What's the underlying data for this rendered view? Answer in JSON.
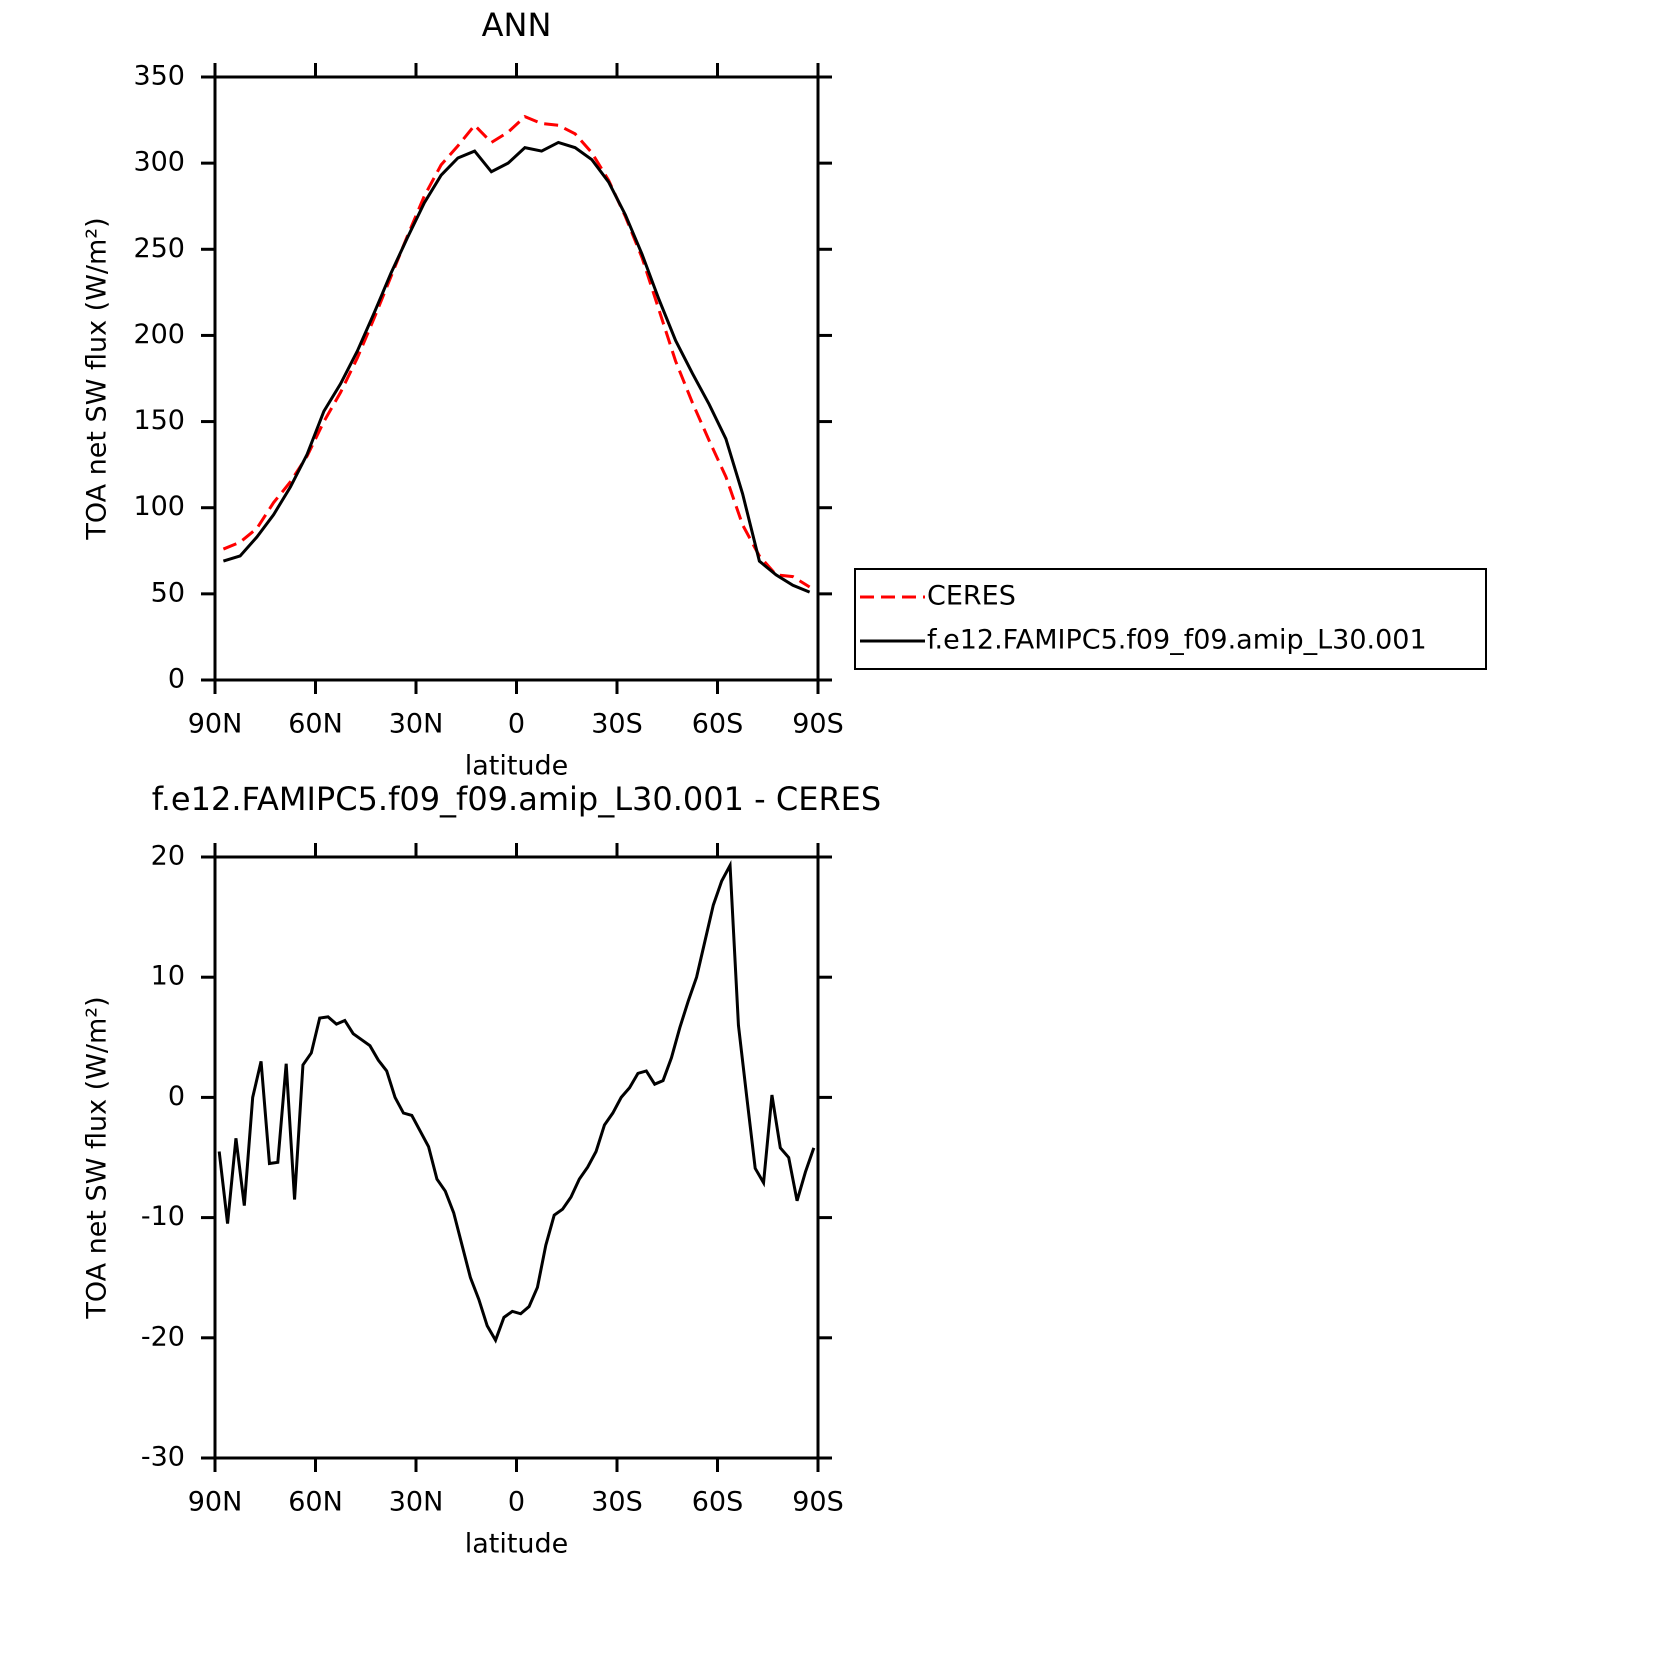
{
  "chart_data": [
    {
      "type": "line",
      "title": "ANN",
      "x": [
        87.5,
        82.5,
        77.5,
        72.5,
        67.5,
        62.5,
        57.5,
        52.5,
        47.5,
        42.5,
        37.5,
        32.5,
        27.5,
        22.5,
        17.5,
        12.5,
        7.5,
        2.5,
        -2.5,
        -7.5,
        -12.5,
        -17.5,
        -22.5,
        -27.5,
        -32.5,
        -37.5,
        -42.5,
        -47.5,
        -52.5,
        -57.5,
        -62.5,
        -67.5,
        -72.5,
        -77.5,
        -82.5,
        -87.5
      ],
      "series": [
        {
          "name": "CERES",
          "color": "#ff0000",
          "linestyle": "dashed",
          "values": [
            76,
            80,
            88,
            103,
            115,
            130,
            150,
            167,
            187,
            210,
            234,
            258,
            281,
            299,
            310,
            322,
            312,
            318,
            327,
            323,
            322,
            317,
            306,
            290,
            269,
            245,
            215,
            185,
            161,
            139,
            118,
            90,
            72,
            61,
            60,
            54
          ]
        },
        {
          "name": "f.e12.FAMIPC5.f09_f09.amip_L30.001",
          "color": "#000000",
          "linestyle": "solid",
          "values": [
            69,
            72,
            83,
            96,
            112,
            131,
            156,
            172,
            191,
            213,
            236,
            257,
            277,
            293,
            303,
            307,
            295,
            300,
            309,
            307,
            312,
            309,
            302,
            289,
            270,
            247,
            221,
            197,
            178,
            160,
            140,
            108,
            69,
            61,
            55,
            51
          ]
        }
      ],
      "xlim": [
        90,
        -90
      ],
      "xticks": [
        {
          "value": 90,
          "label": "90N"
        },
        {
          "value": 60,
          "label": "60N"
        },
        {
          "value": 30,
          "label": "30N"
        },
        0,
        {
          "value": -30,
          "label": "30S"
        },
        {
          "value": -60,
          "label": "60S"
        },
        {
          "value": -90,
          "label": "90S"
        }
      ],
      "ylim": [
        0,
        350
      ],
      "yticks": [
        0,
        50,
        100,
        150,
        200,
        250,
        300,
        350
      ],
      "xlabel": "latitude",
      "ylabel": "TOA net SW flux (W/m²)",
      "legend": "outside-right"
    },
    {
      "type": "line",
      "title": "f.e12.FAMIPC5.f09_f09.amip_L30.001 - CERES",
      "x": [
        88.75,
        86.25,
        83.75,
        81.25,
        78.75,
        76.25,
        73.75,
        71.25,
        68.75,
        66.25,
        63.75,
        61.25,
        58.75,
        56.25,
        53.75,
        51.25,
        48.75,
        46.25,
        43.75,
        41.25,
        38.75,
        36.25,
        33.75,
        31.25,
        28.75,
        26.25,
        23.75,
        21.25,
        18.75,
        16.25,
        13.75,
        11.25,
        8.75,
        6.25,
        3.75,
        1.25,
        -1.25,
        -3.75,
        -6.25,
        -8.75,
        -11.25,
        -13.75,
        -16.25,
        -18.75,
        -21.25,
        -23.75,
        -26.25,
        -28.75,
        -31.25,
        -33.75,
        -36.25,
        -38.75,
        -41.25,
        -43.75,
        -46.25,
        -48.75,
        -51.25,
        -53.75,
        -56.25,
        -58.75,
        -61.25,
        -63.75,
        -66.25,
        -68.75,
        -71.25,
        -73.75,
        -76.25,
        -78.75,
        -81.25,
        -83.75,
        -86.25,
        -88.75
      ],
      "values": [
        -4.5,
        -10.5,
        -3.4,
        -9,
        0,
        3,
        -5.5,
        -5.4,
        2.8,
        -8.5,
        2.7,
        3.7,
        6.6,
        6.7,
        6.1,
        6.4,
        5.3,
        4.8,
        4.3,
        3.1,
        2.2,
        0,
        -1.3,
        -1.5,
        -2.8,
        -4.1,
        -6.8,
        -7.8,
        -9.6,
        -12.3,
        -15,
        -16.8,
        -19,
        -20.2,
        -18.3,
        -17.8,
        -18,
        -17.4,
        -15.8,
        -12.3,
        -9.8,
        -9.3,
        -8.3,
        -6.8,
        -5.8,
        -4.5,
        -2.3,
        -1.3,
        0,
        0.8,
        2,
        2.2,
        1.1,
        1.4,
        3.3,
        5.8,
        8,
        10,
        13,
        16,
        18,
        19.3,
        6,
        0,
        -5.9,
        -7.1,
        0.2,
        -4.2,
        -5,
        -8.6,
        -6.2,
        -4.2
      ],
      "color": "#000000",
      "xlim": [
        90,
        -90
      ],
      "xticks": [
        {
          "value": 90,
          "label": "90N"
        },
        {
          "value": 60,
          "label": "60N"
        },
        {
          "value": 30,
          "label": "30N"
        },
        0,
        {
          "value": -30,
          "label": "30S"
        },
        {
          "value": -60,
          "label": "60S"
        },
        {
          "value": -90,
          "label": "90S"
        }
      ],
      "ylim": [
        -30,
        20
      ],
      "yticks": [
        -30,
        -20,
        -10,
        0,
        10,
        20
      ],
      "xlabel": "latitude",
      "ylabel": "TOA net SW flux (W/m²)"
    }
  ]
}
